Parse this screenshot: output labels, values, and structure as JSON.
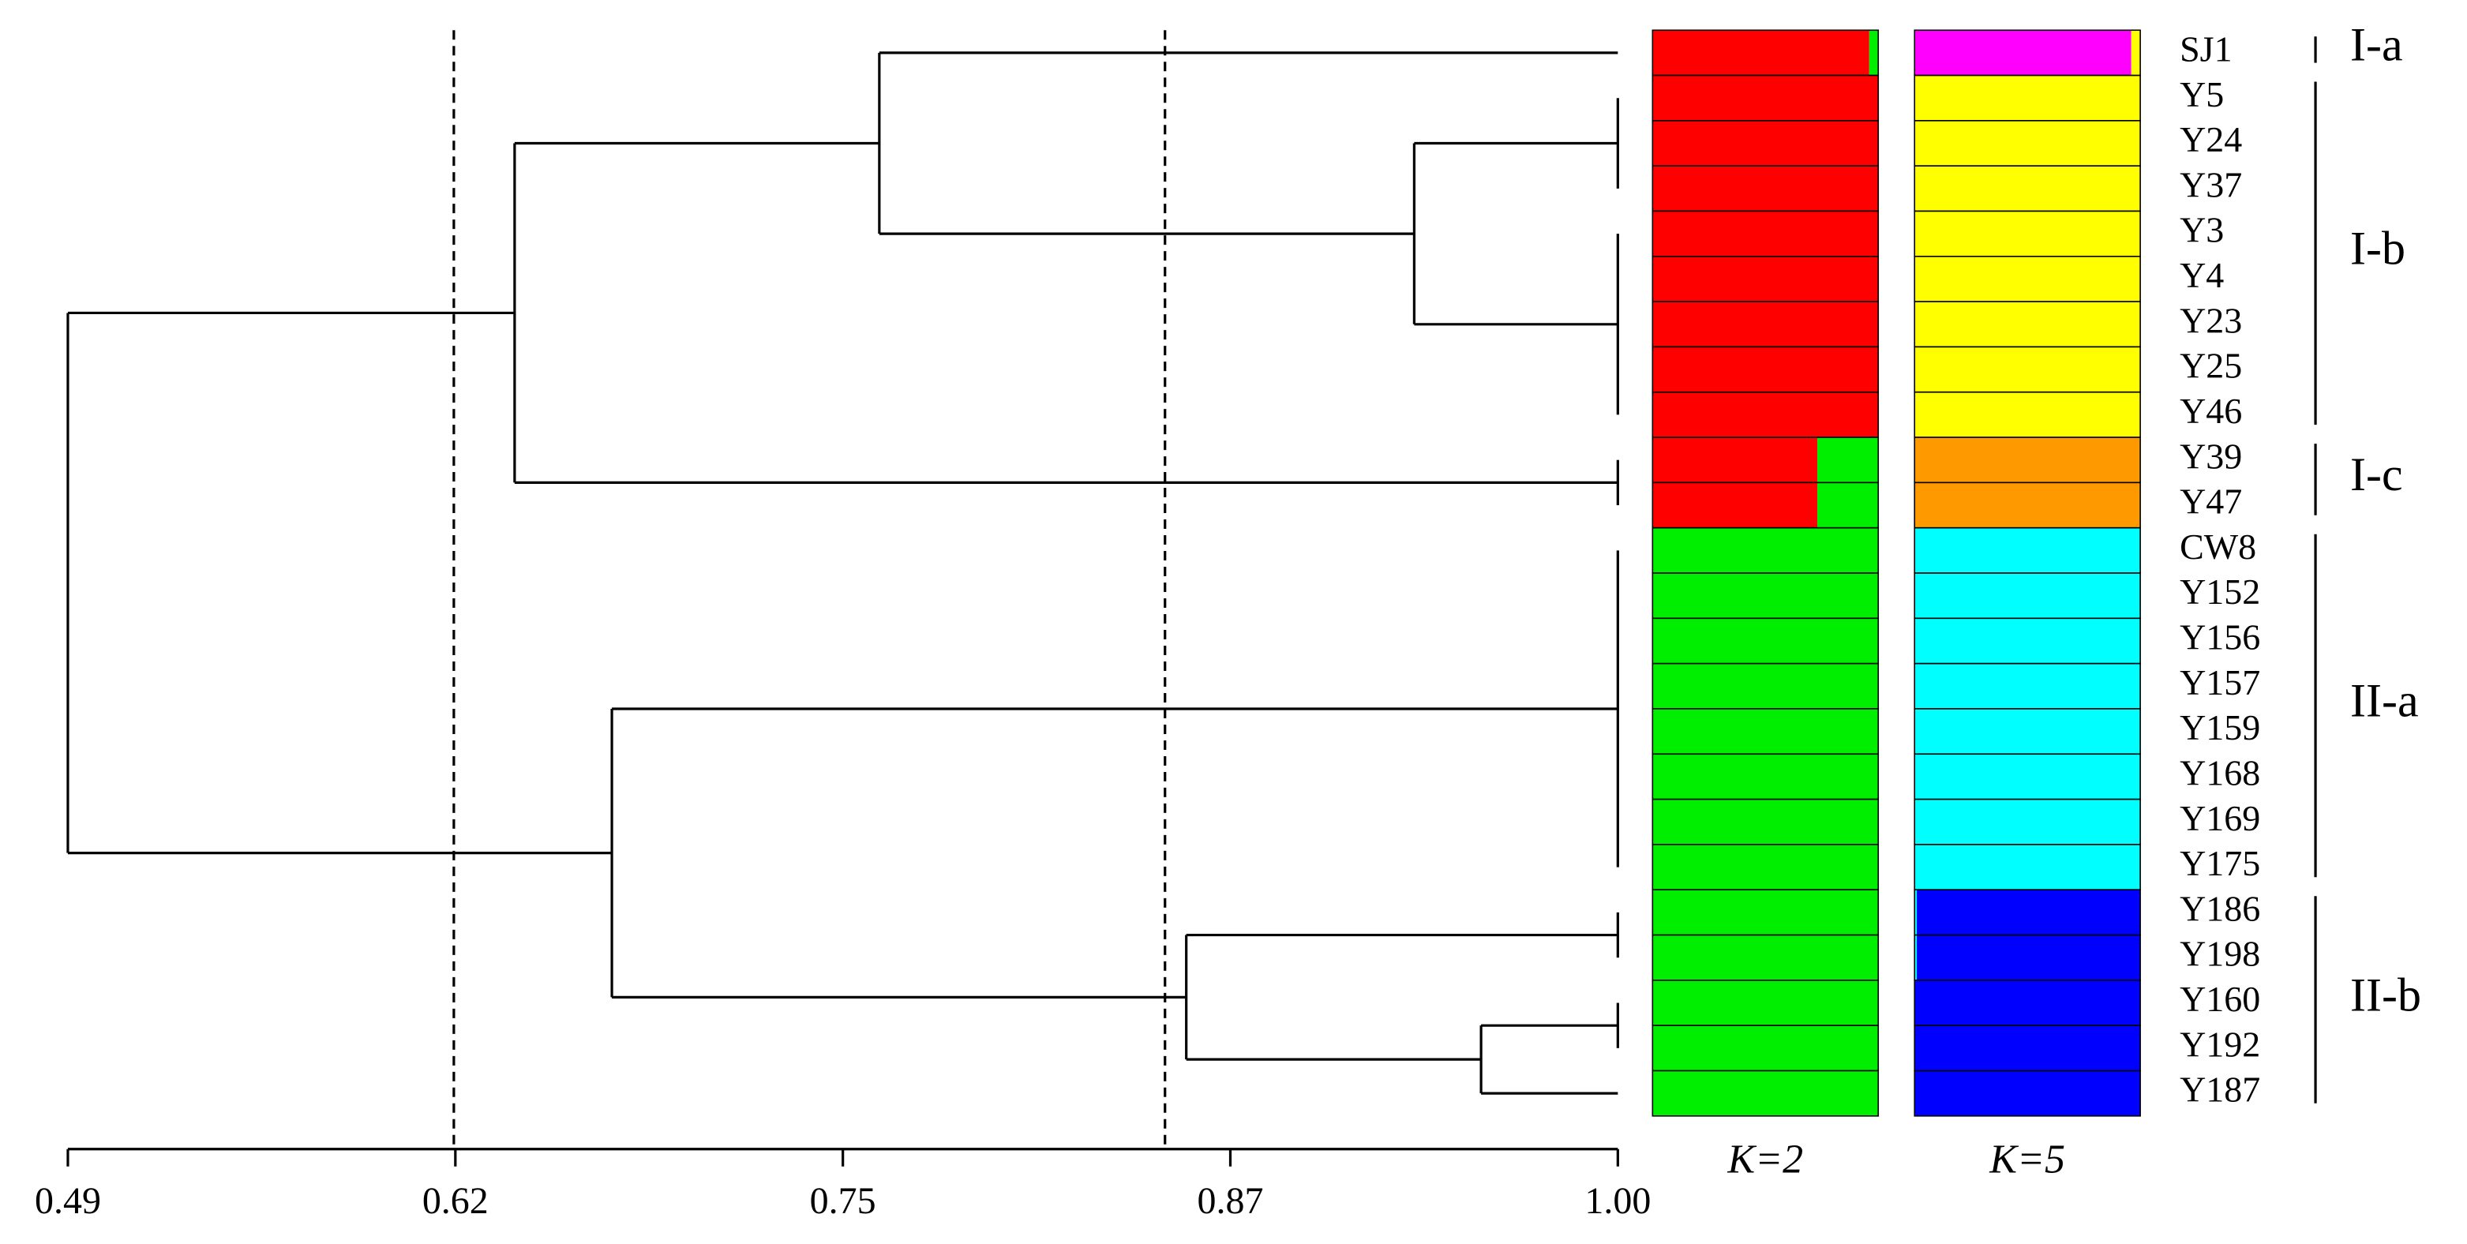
{
  "chart_data": {
    "type": "dendrogram",
    "leaves": [
      "SJ1",
      "Y5",
      "Y24",
      "Y37",
      "Y3",
      "Y4",
      "Y23",
      "Y25",
      "Y46",
      "Y39",
      "Y47",
      "CW8",
      "Y152",
      "Y156",
      "Y157",
      "Y159",
      "Y168",
      "Y169",
      "Y175",
      "Y186",
      "Y198",
      "Y160",
      "Y192",
      "Y187"
    ],
    "xlim": [
      0.49,
      1
    ],
    "xticks": [
      0.49,
      {
        "value": 0.6175,
        "label": "0.62"
      },
      {
        "value": 0.745,
        "label": "0.75"
      },
      {
        "value": 0.8725,
        "label": "0.87"
      },
      {
        "value": 1,
        "label": "1.00"
      }
    ],
    "cut_lines": [
      0.617,
      0.851
    ],
    "tree": {
      "height": 0.49,
      "children": [
        {
          "height": 0.637,
          "children": [
            {
              "height": 0.757,
              "children": [
                {
                  "leaves": [
                    0
                  ]
                },
                {
                  "height": 0.933,
                  "children": [
                    {
                      "leaves": [
                        1,
                        2,
                        3
                      ]
                    },
                    {
                      "leaves": [
                        4,
                        5,
                        6,
                        7,
                        8
                      ]
                    }
                  ]
                }
              ]
            },
            {
              "leaves": [
                9,
                10
              ]
            }
          ]
        },
        {
          "height": 0.669,
          "children": [
            {
              "leaves": [
                11,
                12,
                13,
                14,
                15,
                16,
                17,
                18
              ]
            },
            {
              "height": 0.858,
              "children": [
                {
                  "leaves": [
                    19,
                    20
                  ]
                },
                {
                  "height": 0.955,
                  "children": [
                    {
                      "leaves": [
                        21,
                        22
                      ]
                    },
                    {
                      "leaves": [
                        23
                      ]
                    }
                  ]
                }
              ]
            }
          ]
        }
      ]
    },
    "structure": [
      {
        "label": "K=2",
        "series": [
          {
            "color": "#ff0000",
            "values": [
              0.96,
              1,
              1,
              1,
              1,
              1,
              1,
              1,
              1,
              0.73,
              0.73,
              0,
              0,
              0,
              0,
              0,
              0,
              0,
              0,
              0,
              0,
              0,
              0,
              0
            ]
          },
          {
            "color": "#00ee00",
            "values": [
              0.04,
              0,
              0,
              0,
              0,
              0,
              0,
              0,
              0,
              0.27,
              0.27,
              1,
              1,
              1,
              1,
              1,
              1,
              1,
              1,
              1,
              1,
              1,
              1,
              1
            ]
          }
        ]
      },
      {
        "label": "K=5",
        "series": [
          {
            "color": "#ff00ff",
            "values": [
              0.96,
              0,
              0,
              0,
              0,
              0,
              0,
              0,
              0,
              0,
              0,
              0,
              0,
              0,
              0,
              0,
              0,
              0,
              0,
              0,
              0,
              0,
              0,
              0
            ]
          },
          {
            "color": "#ffff00",
            "values": [
              0.04,
              1,
              1,
              1,
              1,
              1,
              1,
              1,
              1,
              0,
              0,
              0,
              0,
              0,
              0,
              0,
              0,
              0,
              0,
              0,
              0,
              0,
              0,
              0
            ]
          },
          {
            "color": "#ff9900",
            "values": [
              0,
              0,
              0,
              0,
              0,
              0,
              0,
              0,
              0,
              1,
              1,
              0,
              0,
              0,
              0,
              0,
              0,
              0,
              0,
              0,
              0,
              0,
              0,
              0
            ]
          },
          {
            "color": "#00ffff",
            "values": [
              0,
              0,
              0,
              0,
              0,
              0,
              0,
              0,
              0,
              0,
              0,
              1,
              1,
              1,
              1,
              1,
              1,
              1,
              1,
              0.01,
              0.01,
              0,
              0,
              0
            ]
          },
          {
            "color": "#0000ff",
            "values": [
              0,
              0,
              0,
              0,
              0,
              0,
              0,
              0,
              0,
              0,
              0,
              0,
              0,
              0,
              0,
              0,
              0,
              0,
              0,
              0.99,
              0.99,
              1,
              1,
              1
            ]
          }
        ]
      }
    ],
    "groups": [
      {
        "label": "I-a",
        "leaves": [
          0,
          0
        ]
      },
      {
        "label": "I-b",
        "leaves": [
          1,
          8
        ]
      },
      {
        "label": "I-c",
        "leaves": [
          9,
          10
        ]
      },
      {
        "label": "II-a",
        "leaves": [
          11,
          18
        ]
      },
      {
        "label": "II-b",
        "leaves": [
          19,
          23
        ]
      }
    ]
  }
}
